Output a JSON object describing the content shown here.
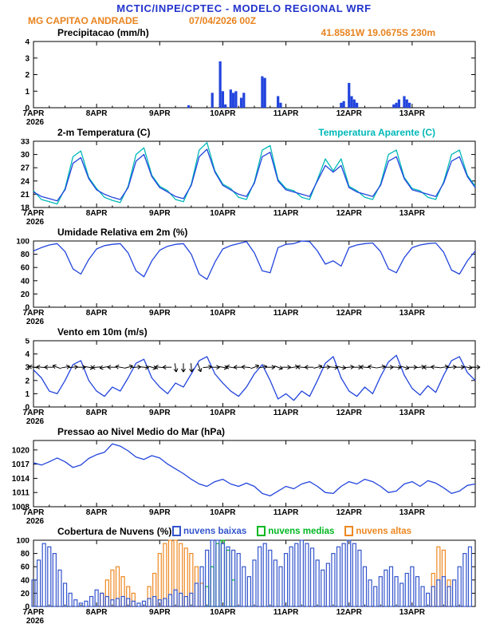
{
  "header": {
    "title": "MCTIC/INPE/CPTEC - MODELO REGIONAL WRF",
    "station": "MG CAPITAO ANDRADE",
    "run": "07/04/2026 00Z",
    "location": "41.8581W 19.0675S 230m"
  },
  "x_axis": {
    "labels": [
      "7APR",
      "8APR",
      "9APR",
      "10APR",
      "11APR",
      "12APR",
      "13APR"
    ],
    "label_hours": [
      0,
      24,
      48,
      72,
      96,
      120,
      144
    ],
    "year": "2026",
    "hours_total": 168
  },
  "colors": {
    "title_blue": "#2233cc",
    "orange": "#e8831e",
    "line_blue": "#2244dd",
    "cyan": "#00b8b8",
    "cloud_low": "#3355cc",
    "cloud_mid": "#00b822",
    "cloud_high": "#ee8822"
  },
  "panels": [
    {
      "title": "Precipitacao (mm/h)"
    },
    {
      "title": "2-m Temperatura (C)",
      "right_label": "Temperatura Aparente (C)"
    },
    {
      "title": "Umidade Relativa em 2m (%)"
    },
    {
      "title": "Vento em 10m (m/s)"
    },
    {
      "title": "Pressao ao Nivel Medio do Mar (hPa)"
    },
    {
      "title": "Cobertura de Nuvens (%)",
      "legend": [
        {
          "label": "nuvens baixas",
          "color": "#3355cc"
        },
        {
          "label": "nuvens medias",
          "color": "#00b822"
        },
        {
          "label": "nuvens altas",
          "color": "#ee8822"
        }
      ]
    }
  ],
  "chart_data": [
    {
      "type": "bar",
      "title": "Precipitacao (mm/h)",
      "x_unit": "hours since 07/04/2026 00Z",
      "xlim": [
        0,
        168
      ],
      "ylim": [
        0,
        4
      ],
      "yticks": [
        0,
        1,
        2,
        3,
        4
      ],
      "color": "#2244dd",
      "points": [
        [
          59,
          0.15
        ],
        [
          68,
          0.9
        ],
        [
          71,
          2.8
        ],
        [
          72,
          1.0
        ],
        [
          73,
          0.2
        ],
        [
          75,
          1.1
        ],
        [
          76,
          0.9
        ],
        [
          77,
          1.0
        ],
        [
          79,
          0.6
        ],
        [
          80,
          0.9
        ],
        [
          87,
          1.9
        ],
        [
          88,
          1.8
        ],
        [
          93,
          0.7
        ],
        [
          94,
          0.3
        ],
        [
          117,
          0.3
        ],
        [
          118,
          0.4
        ],
        [
          120,
          1.5
        ],
        [
          121,
          0.7
        ],
        [
          122,
          0.5
        ],
        [
          123,
          0.3
        ],
        [
          137,
          0.2
        ],
        [
          138,
          0.3
        ],
        [
          139,
          0.5
        ],
        [
          141,
          0.7
        ],
        [
          142,
          0.5
        ],
        [
          143,
          0.3
        ]
      ]
    },
    {
      "type": "line",
      "title": "2-m Temperatura (C)",
      "x_unit": "hours since 07/04/2026 00Z",
      "xlim": [
        0,
        168
      ],
      "ylim": [
        18,
        33
      ],
      "yticks": [
        18,
        21,
        24,
        27,
        30,
        33
      ],
      "t0": 0,
      "dt": 3,
      "series": [
        {
          "name": "Temperatura Aparente (C)",
          "color": "#00b8b8",
          "values": [
            21.8,
            19.8,
            19.3,
            18.8,
            22.3,
            29.5,
            30.8,
            24.8,
            22.3,
            20.3,
            19.6,
            19.1,
            22.8,
            30.0,
            31.5,
            25.3,
            22.8,
            21.8,
            19.8,
            19.3,
            23.3,
            31.0,
            32.7,
            26.3,
            23.3,
            22.3,
            20.3,
            19.8,
            23.8,
            31.0,
            32.0,
            24.3,
            22.3,
            21.8,
            20.3,
            19.8,
            24.3,
            29.0,
            26.3,
            29.0,
            22.8,
            21.8,
            20.3,
            19.8,
            23.3,
            30.0,
            31.0,
            24.8,
            22.3,
            21.8,
            20.3,
            19.8,
            23.8,
            30.0,
            31.0,
            25.3,
            22.8
          ]
        },
        {
          "name": "2-m Temperatura (C)",
          "color": "#2244dd",
          "values": [
            21.5,
            20.5,
            20.0,
            19.5,
            22.0,
            28.0,
            29.3,
            24.5,
            22.0,
            21.0,
            20.3,
            19.8,
            22.5,
            28.5,
            30.0,
            25.0,
            22.5,
            21.5,
            20.5,
            20.0,
            23.0,
            29.5,
            31.2,
            26.0,
            23.0,
            22.0,
            21.0,
            20.5,
            23.5,
            29.5,
            30.5,
            24.0,
            22.0,
            21.5,
            21.0,
            20.5,
            24.0,
            27.5,
            26.0,
            27.5,
            22.5,
            21.5,
            21.0,
            20.5,
            23.0,
            28.5,
            29.5,
            24.5,
            22.0,
            21.5,
            21.0,
            20.5,
            23.5,
            28.5,
            29.5,
            25.0,
            22.5
          ]
        }
      ]
    },
    {
      "type": "line",
      "title": "Umidade Relativa em 2m (%)",
      "x_unit": "hours since 07/04/2026 00Z",
      "xlim": [
        0,
        168
      ],
      "ylim": [
        0,
        100
      ],
      "yticks": [
        0,
        20,
        40,
        60,
        80,
        100
      ],
      "t0": 0,
      "dt": 3,
      "series": [
        {
          "name": "Umidade Relativa em 2m",
          "color": "#2244dd",
          "values": [
            85,
            90,
            94,
            96,
            84,
            58,
            50,
            72,
            88,
            93,
            95,
            96,
            82,
            55,
            46,
            70,
            86,
            92,
            95,
            96,
            80,
            50,
            42,
            68,
            88,
            93,
            96,
            99,
            82,
            55,
            52,
            90,
            95,
            96,
            100,
            99,
            85,
            65,
            70,
            62,
            90,
            94,
            96,
            97,
            84,
            58,
            52,
            75,
            90,
            94,
            96,
            97,
            83,
            56,
            50,
            70,
            85
          ]
        }
      ]
    },
    {
      "type": "line-vectors",
      "title": "Vento em 10m (m/s)",
      "x_unit": "hours since 07/04/2026 00Z",
      "xlim": [
        0,
        168
      ],
      "ylim": [
        0,
        5
      ],
      "yticks": [
        0,
        1,
        2,
        3,
        4,
        5
      ],
      "t0": 0,
      "dt": 3,
      "series": [
        {
          "name": "Velocidade do vento em 10m",
          "color": "#2244dd",
          "values": [
            2.8,
            2.2,
            1.2,
            1.0,
            2.0,
            3.2,
            3.5,
            2.0,
            1.2,
            0.8,
            1.5,
            1.2,
            2.2,
            3.3,
            3.6,
            2.2,
            1.5,
            1.0,
            1.8,
            1.5,
            2.5,
            3.5,
            3.8,
            2.5,
            1.8,
            1.2,
            0.8,
            1.5,
            2.5,
            3.2,
            2.0,
            0.6,
            1.0,
            0.5,
            1.2,
            0.8,
            2.0,
            3.3,
            3.8,
            2.2,
            1.2,
            0.8,
            1.5,
            1.0,
            2.3,
            3.4,
            3.9,
            2.4,
            1.4,
            0.9,
            1.6,
            1.1,
            2.4,
            3.5,
            3.8,
            2.6,
            2.0
          ]
        }
      ],
      "vectors": {
        "y": 3,
        "angle_unit": "deg (0=E, 90=N, -90=S, 180=W)",
        "angles": [
          170,
          175,
          180,
          160,
          10,
          5,
          0,
          -10,
          185,
          190,
          180,
          170,
          15,
          5,
          -5,
          -15,
          175,
          180,
          -80,
          -90,
          -85,
          -70,
          5,
          0,
          -10,
          170,
          180,
          175,
          20,
          10,
          0,
          -20,
          0,
          10,
          175,
          180,
          15,
          5,
          -5,
          -10,
          5,
          0,
          175,
          170,
          10,
          0,
          -5,
          -15,
          0,
          5,
          180,
          175,
          10,
          5,
          0,
          -10,
          0
        ]
      }
    },
    {
      "type": "line",
      "title": "Pressao ao Nivel Medio do Mar (hPa)",
      "x_unit": "hours since 07/04/2026 00Z",
      "xlim": [
        0,
        168
      ],
      "ylim": [
        1008,
        1022
      ],
      "yticks": [
        1008,
        1011,
        1014,
        1017,
        1020
      ],
      "t0": 0,
      "dt": 3,
      "series": [
        {
          "name": "Pressao ao nivel medio do mar",
          "color": "#2244dd",
          "values": [
            1017.3,
            1016.8,
            1017.5,
            1018.3,
            1017.5,
            1016.3,
            1016.8,
            1018.2,
            1019.0,
            1019.5,
            1021.3,
            1020.8,
            1019.8,
            1018.5,
            1018.0,
            1018.8,
            1018.3,
            1017.0,
            1016.0,
            1015.0,
            1013.8,
            1012.8,
            1012.3,
            1013.3,
            1013.8,
            1012.8,
            1012.3,
            1013.0,
            1012.3,
            1010.8,
            1010.3,
            1011.3,
            1012.3,
            1011.8,
            1012.8,
            1013.3,
            1012.3,
            1011.0,
            1010.8,
            1012.3,
            1013.3,
            1012.8,
            1013.8,
            1013.3,
            1012.3,
            1011.0,
            1011.3,
            1012.8,
            1013.3,
            1012.3,
            1013.5,
            1013.0,
            1012.0,
            1010.8,
            1011.3,
            1012.5,
            1012.8
          ]
        }
      ]
    },
    {
      "type": "bar-multi",
      "title": "Cobertura de Nuvens (%)",
      "x_unit": "hours since 07/04/2026 00Z",
      "xlim": [
        0,
        168
      ],
      "ylim": [
        0,
        100
      ],
      "yticks": [
        0,
        20,
        40,
        60,
        80,
        100
      ],
      "t0": 0,
      "dt": 2,
      "series": [
        {
          "name": "nuvens altas",
          "color": "#ee8822",
          "values": [
            0,
            0,
            0,
            0,
            0,
            0,
            0,
            0,
            0,
            0,
            0,
            0,
            0,
            20,
            40,
            55,
            60,
            45,
            30,
            20,
            0,
            0,
            30,
            50,
            80,
            95,
            100,
            100,
            95,
            88,
            80,
            60,
            35,
            0,
            0,
            0,
            0,
            0,
            0,
            0,
            0,
            0,
            0,
            0,
            0,
            0,
            0,
            0,
            0,
            0,
            0,
            0,
            0,
            0,
            0,
            0,
            0,
            0,
            0,
            0,
            0,
            0,
            0,
            0,
            0,
            0,
            0,
            0,
            0,
            0,
            0,
            0,
            0,
            0,
            0,
            0,
            50,
            90,
            85,
            40,
            0,
            0,
            0,
            0
          ]
        },
        {
          "name": "nuvens medias",
          "color": "#00b822",
          "values": [
            0,
            0,
            0,
            0,
            0,
            0,
            0,
            0,
            0,
            0,
            0,
            0,
            0,
            0,
            0,
            0,
            0,
            0,
            0,
            0,
            0,
            0,
            0,
            0,
            0,
            0,
            0,
            0,
            0,
            0,
            0,
            0,
            0,
            30,
            60,
            95,
            100,
            85,
            40,
            0,
            0,
            0,
            0,
            0,
            0,
            0,
            0,
            0,
            0,
            0,
            0,
            0,
            0,
            0,
            0,
            0,
            0,
            0,
            0,
            0,
            0,
            0,
            0,
            0,
            0,
            0,
            0,
            0,
            0,
            0,
            0,
            0,
            0,
            0,
            0,
            0,
            0,
            0,
            0,
            0,
            0,
            0,
            0,
            0
          ]
        },
        {
          "name": "nuvens baixas",
          "color": "#3355cc",
          "values": [
            40,
            70,
            95,
            90,
            80,
            55,
            35,
            20,
            10,
            5,
            8,
            15,
            25,
            20,
            15,
            10,
            12,
            15,
            12,
            8,
            5,
            8,
            12,
            15,
            10,
            12,
            18,
            25,
            20,
            15,
            20,
            35,
            60,
            85,
            100,
            100,
            95,
            90,
            85,
            80,
            60,
            45,
            70,
            90,
            95,
            85,
            70,
            60,
            80,
            90,
            95,
            100,
            95,
            88,
            70,
            55,
            65,
            80,
            90,
            95,
            100,
            95,
            85,
            60,
            40,
            30,
            45,
            55,
            60,
            45,
            35,
            50,
            60,
            45,
            30,
            20,
            30,
            40,
            45,
            30,
            40,
            60,
            80,
            90
          ]
        }
      ]
    }
  ]
}
